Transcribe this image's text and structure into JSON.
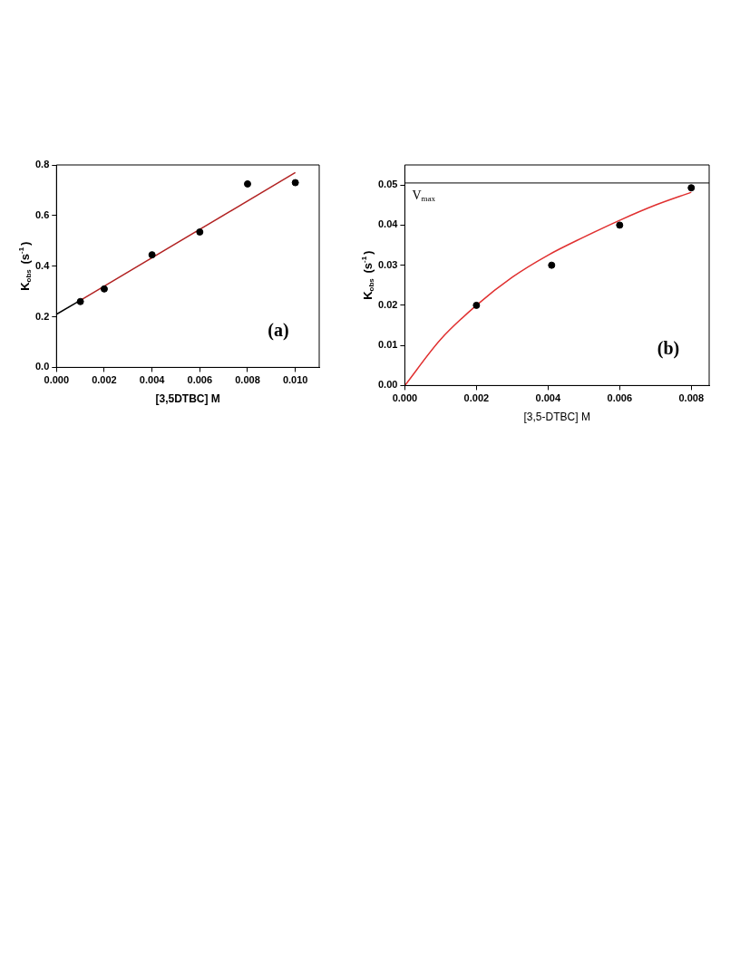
{
  "chart_data": [
    {
      "type": "scatter",
      "xlabel": "[3,5DTBC] M",
      "ylabel": "K$_{obs}$ (s$^{-1}$)",
      "xlim": [
        0,
        0.011
      ],
      "ylim": [
        0,
        0.8
      ],
      "xticks": [
        {
          "value": 0,
          "label": "0.000"
        },
        {
          "value": 0.002,
          "label": "0.002"
        },
        {
          "value": 0.004,
          "label": "0.004"
        },
        {
          "value": 0.006,
          "label": "0.006"
        },
        {
          "value": 0.008,
          "label": "0.008"
        },
        {
          "value": 0.01,
          "label": "0.010"
        }
      ],
      "yticks": [
        {
          "value": 0,
          "label": "0.0"
        },
        {
          "value": 0.2,
          "label": "0.2"
        },
        {
          "value": 0.4,
          "label": "0.4"
        },
        {
          "value": 0.6,
          "label": "0.6"
        },
        {
          "value": 0.8,
          "label": "0.8"
        }
      ],
      "series": [
        {
          "type": "scatter",
          "marker": "circle",
          "color": "#000000",
          "x": [
            0.001,
            0.002,
            0.004,
            0.006,
            0.008,
            0.01
          ],
          "values": [
            0.26,
            0.31,
            0.445,
            0.535,
            0.725,
            0.73
          ]
        },
        {
          "type": "line",
          "color": "#b22222",
          "x": [
            0.001,
            0.01
          ],
          "values": [
            0.265,
            0.77
          ]
        },
        {
          "type": "line",
          "color": "#000000",
          "x": [
            0,
            0.001
          ],
          "values": [
            0.21,
            0.265
          ]
        }
      ],
      "annotations": [
        "(a)"
      ]
    },
    {
      "type": "scatter",
      "xlabel": "[3,5-DTBC] M",
      "ylabel": "K$_{obs}$ (s$^{-1}$)",
      "xlim": [
        0,
        0.0085
      ],
      "ylim": [
        0,
        0.055
      ],
      "xticks": [
        {
          "value": 0,
          "label": "0.000"
        },
        {
          "value": 0.002,
          "label": "0.002"
        },
        {
          "value": 0.004,
          "label": "0.004"
        },
        {
          "value": 0.006,
          "label": "0.006"
        },
        {
          "value": 0.008,
          "label": "0.008"
        }
      ],
      "yticks": [
        {
          "value": 0,
          "label": "0.00"
        },
        {
          "value": 0.01,
          "label": "0.01"
        },
        {
          "value": 0.02,
          "label": "0.02"
        },
        {
          "value": 0.03,
          "label": "0.03"
        },
        {
          "value": 0.04,
          "label": "0.04"
        },
        {
          "value": 0.05,
          "label": "0.05"
        }
      ],
      "series": [
        {
          "type": "scatter",
          "marker": "circle",
          "color": "#000000",
          "x": [
            0.002,
            0.0041,
            0.006,
            0.008
          ],
          "values": [
            0.02,
            0.03,
            0.04,
            0.0493
          ]
        },
        {
          "type": "line",
          "color": "#e03030",
          "x": [
            0,
            0.001,
            0.002,
            0.003,
            0.004,
            0.005,
            0.006,
            0.007,
            0.008
          ],
          "values": [
            0,
            0.0115,
            0.02,
            0.027,
            0.0325,
            0.037,
            0.0412,
            0.045,
            0.0482
          ]
        }
      ],
      "ref_lines": [
        {
          "axis": "y",
          "value": 0.0505,
          "label": "V$_{max}$",
          "color": "#000000"
        }
      ],
      "annotations": [
        "(b)"
      ]
    }
  ]
}
